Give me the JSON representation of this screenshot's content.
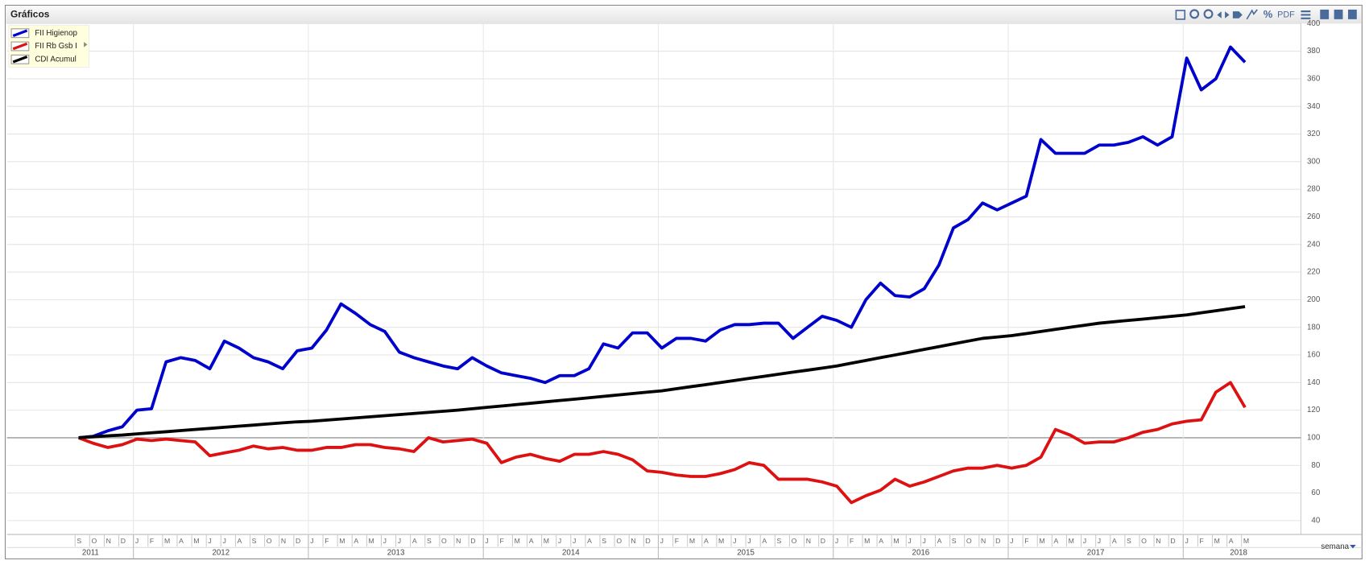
{
  "window_title": "Gráficos",
  "toolbar": {
    "pdf": "PDF"
  },
  "footer": {
    "period": "semana"
  },
  "chart_data": {
    "type": "line",
    "x": [
      "2011-09",
      "2011-10",
      "2011-11",
      "2011-12",
      "2012-01",
      "2012-02",
      "2012-03",
      "2012-04",
      "2012-05",
      "2012-06",
      "2012-07",
      "2012-08",
      "2012-09",
      "2012-10",
      "2012-11",
      "2012-12",
      "2013-01",
      "2013-02",
      "2013-03",
      "2013-04",
      "2013-05",
      "2013-06",
      "2013-07",
      "2013-08",
      "2013-09",
      "2013-10",
      "2013-11",
      "2013-12",
      "2014-01",
      "2014-02",
      "2014-03",
      "2014-04",
      "2014-05",
      "2014-06",
      "2014-07",
      "2014-08",
      "2014-09",
      "2014-10",
      "2014-11",
      "2014-12",
      "2015-01",
      "2015-02",
      "2015-03",
      "2015-04",
      "2015-05",
      "2015-06",
      "2015-07",
      "2015-08",
      "2015-09",
      "2015-10",
      "2015-11",
      "2015-12",
      "2016-01",
      "2016-02",
      "2016-03",
      "2016-04",
      "2016-05",
      "2016-06",
      "2016-07",
      "2016-08",
      "2016-09",
      "2016-10",
      "2016-11",
      "2016-12",
      "2017-01",
      "2017-02",
      "2017-03",
      "2017-04",
      "2017-05",
      "2017-06",
      "2017-07",
      "2017-08",
      "2017-09",
      "2017-10",
      "2017-11",
      "2017-12",
      "2018-01",
      "2018-02",
      "2018-03",
      "2018-04",
      "2018-05"
    ],
    "month_labels": [
      "J",
      "F",
      "M",
      "A",
      "M",
      "J",
      "J",
      "A",
      "S",
      "O",
      "N",
      "D"
    ],
    "year_labels": [
      2011,
      2012,
      2013,
      2014,
      2015,
      2016,
      2017,
      2018
    ],
    "series": [
      {
        "name": "FII Higienop",
        "color": "#0000cc",
        "values": [
          100,
          101,
          105,
          108,
          120,
          121,
          155,
          158,
          156,
          150,
          170,
          165,
          158,
          155,
          150,
          163,
          165,
          178,
          197,
          190,
          182,
          177,
          162,
          158,
          155,
          152,
          150,
          158,
          152,
          147,
          145,
          143,
          140,
          145,
          145,
          150,
          168,
          165,
          176,
          176,
          165,
          172,
          172,
          170,
          178,
          182,
          182,
          183,
          183,
          172,
          180,
          188,
          185,
          180,
          200,
          212,
          203,
          202,
          208,
          225,
          252,
          258,
          270,
          265,
          270,
          275,
          316,
          306,
          306,
          306,
          312,
          312,
          314,
          318,
          312,
          318,
          375,
          352,
          360,
          383,
          372
        ]
      },
      {
        "name": "FII Rb Gsb I",
        "color": "#dd1111",
        "values": [
          100,
          96,
          93,
          95,
          99,
          98,
          99,
          98,
          97,
          87,
          89,
          91,
          94,
          92,
          93,
          91,
          91,
          93,
          93,
          95,
          95,
          93,
          92,
          90,
          100,
          97,
          98,
          99,
          96,
          82,
          86,
          88,
          85,
          83,
          88,
          88,
          90,
          88,
          84,
          76,
          75,
          73,
          72,
          72,
          74,
          77,
          82,
          80,
          70,
          70,
          70,
          68,
          65,
          53,
          58,
          62,
          70,
          65,
          68,
          72,
          76,
          78,
          78,
          80,
          78,
          80,
          86,
          106,
          102,
          96,
          97,
          97,
          100,
          104,
          106,
          110,
          112,
          113,
          133,
          140,
          122
        ]
      },
      {
        "name": "CDI Acumul",
        "color": "#000000",
        "values": [
          100,
          100.7,
          101.4,
          102,
          102.8,
          103.6,
          104.4,
          105.2,
          106,
          106.8,
          107.6,
          108.4,
          109.2,
          110,
          110.8,
          111.5,
          112,
          112.8,
          113.6,
          114.4,
          115.2,
          116,
          116.8,
          117.6,
          118.4,
          119.2,
          120,
          121,
          122,
          123,
          124,
          125,
          126,
          127,
          128,
          129,
          130,
          131,
          132,
          133,
          134,
          135.5,
          137,
          138.5,
          140,
          141.5,
          143,
          144.5,
          146,
          147.5,
          149,
          150.5,
          152,
          154,
          156,
          158,
          160,
          162,
          164,
          166,
          168,
          170,
          172,
          173,
          174,
          175.5,
          177,
          178.5,
          180,
          181.5,
          183,
          184,
          185,
          186,
          187,
          188,
          189,
          190.5,
          192,
          193.5,
          195
        ]
      }
    ],
    "ylim": [
      30,
      400
    ],
    "yticks": [
      40,
      60,
      80,
      100,
      120,
      140,
      160,
      180,
      200,
      220,
      240,
      260,
      280,
      300,
      320,
      340,
      360,
      380,
      400
    ],
    "baseline": 100,
    "grid": true,
    "legend": "top-left"
  }
}
